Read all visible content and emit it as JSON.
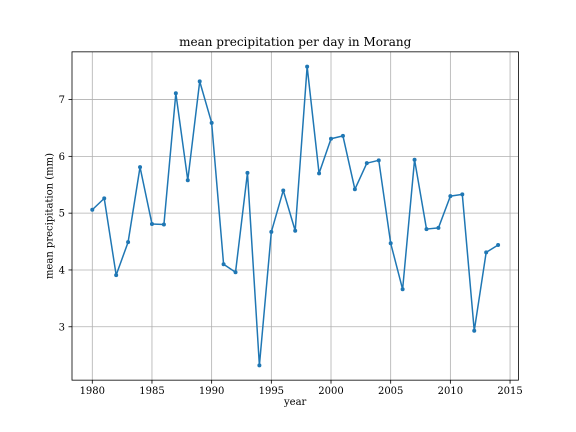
{
  "chart_data": {
    "type": "line",
    "title": "mean precipitation per day in Morang",
    "xlabel": "year",
    "ylabel": "mean precipitation (mm)",
    "xlim": [
      1978.3,
      2015.7
    ],
    "ylim": [
      2.06,
      7.84
    ],
    "xticks": [
      1980,
      1985,
      1990,
      1995,
      2000,
      2005,
      2010,
      2015
    ],
    "yticks": [
      3,
      4,
      5,
      6,
      7
    ],
    "grid": true,
    "marker": "circle",
    "line_color": "#1f77b4",
    "series": [
      {
        "x": [
          1980,
          1981,
          1982,
          1983,
          1984,
          1985,
          1986,
          1987,
          1988,
          1989,
          1990,
          1991,
          1992,
          1993,
          1994,
          1995,
          1996,
          1997,
          1998,
          1999,
          2000,
          2001,
          2002,
          2003,
          2004,
          2005,
          2006,
          2007,
          2008,
          2009,
          2010,
          2011,
          2012,
          2013,
          2014
        ],
        "y": [
          5.06,
          5.26,
          3.91,
          4.49,
          5.81,
          4.81,
          4.8,
          7.11,
          5.58,
          7.32,
          6.59,
          4.1,
          3.96,
          5.71,
          2.32,
          4.67,
          5.4,
          4.69,
          7.58,
          5.7,
          6.31,
          6.36,
          5.42,
          5.88,
          5.93,
          4.47,
          3.66,
          5.94,
          4.72,
          4.74,
          5.3,
          5.33,
          2.93,
          4.31,
          4.44
        ]
      }
    ]
  }
}
